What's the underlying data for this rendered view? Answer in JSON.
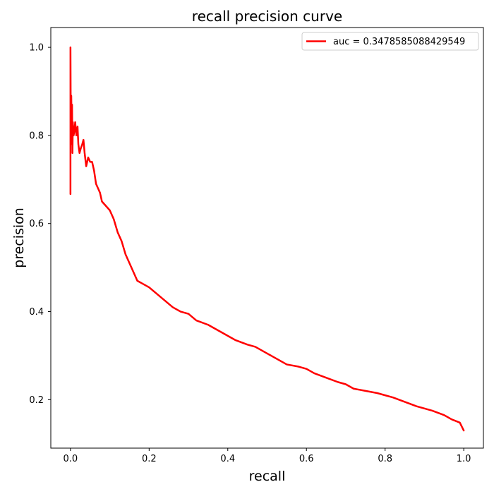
{
  "chart_data": {
    "type": "line",
    "title": "recall precision curve",
    "xlabel": "recall",
    "ylabel": "precision",
    "xlim": [
      -0.05,
      1.05
    ],
    "ylim": [
      0.09,
      1.045
    ],
    "xticks": [
      0.0,
      0.2,
      0.4,
      0.6,
      0.8,
      1.0
    ],
    "xtick_labels": [
      "0.0",
      "0.2",
      "0.4",
      "0.6",
      "0.8",
      "1.0"
    ],
    "yticks": [
      0.2,
      0.4,
      0.6,
      0.8,
      1.0
    ],
    "ytick_labels": [
      "0.2",
      "0.4",
      "0.6",
      "0.8",
      "1.0"
    ],
    "grid": false,
    "legend_position": "upper right",
    "series": [
      {
        "name": "auc = 0.3478585088429549",
        "color": "#ff0000",
        "x": [
          0.0,
          0.0,
          0.001,
          0.001,
          0.002,
          0.002,
          0.003,
          0.004,
          0.005,
          0.006,
          0.008,
          0.01,
          0.012,
          0.015,
          0.018,
          0.02,
          0.023,
          0.026,
          0.03,
          0.033,
          0.036,
          0.04,
          0.045,
          0.05,
          0.055,
          0.06,
          0.065,
          0.07,
          0.075,
          0.08,
          0.09,
          0.1,
          0.11,
          0.12,
          0.13,
          0.14,
          0.15,
          0.16,
          0.17,
          0.18,
          0.19,
          0.2,
          0.22,
          0.24,
          0.26,
          0.28,
          0.3,
          0.32,
          0.35,
          0.38,
          0.4,
          0.42,
          0.45,
          0.47,
          0.5,
          0.52,
          0.55,
          0.58,
          0.6,
          0.62,
          0.65,
          0.68,
          0.7,
          0.72,
          0.75,
          0.78,
          0.8,
          0.82,
          0.85,
          0.88,
          0.9,
          0.92,
          0.95,
          0.97,
          0.99,
          1.0
        ],
        "y": [
          0.667,
          1.0,
          0.78,
          0.88,
          0.8,
          0.89,
          0.82,
          0.87,
          0.76,
          0.83,
          0.8,
          0.81,
          0.83,
          0.8,
          0.82,
          0.78,
          0.76,
          0.77,
          0.78,
          0.79,
          0.76,
          0.73,
          0.75,
          0.74,
          0.74,
          0.72,
          0.69,
          0.68,
          0.67,
          0.65,
          0.64,
          0.63,
          0.61,
          0.58,
          0.56,
          0.53,
          0.51,
          0.49,
          0.47,
          0.465,
          0.46,
          0.455,
          0.44,
          0.425,
          0.41,
          0.4,
          0.395,
          0.38,
          0.37,
          0.355,
          0.345,
          0.335,
          0.325,
          0.32,
          0.305,
          0.295,
          0.28,
          0.275,
          0.27,
          0.26,
          0.25,
          0.24,
          0.235,
          0.225,
          0.22,
          0.215,
          0.21,
          0.205,
          0.195,
          0.185,
          0.18,
          0.175,
          0.165,
          0.155,
          0.148,
          0.13
        ]
      }
    ]
  }
}
